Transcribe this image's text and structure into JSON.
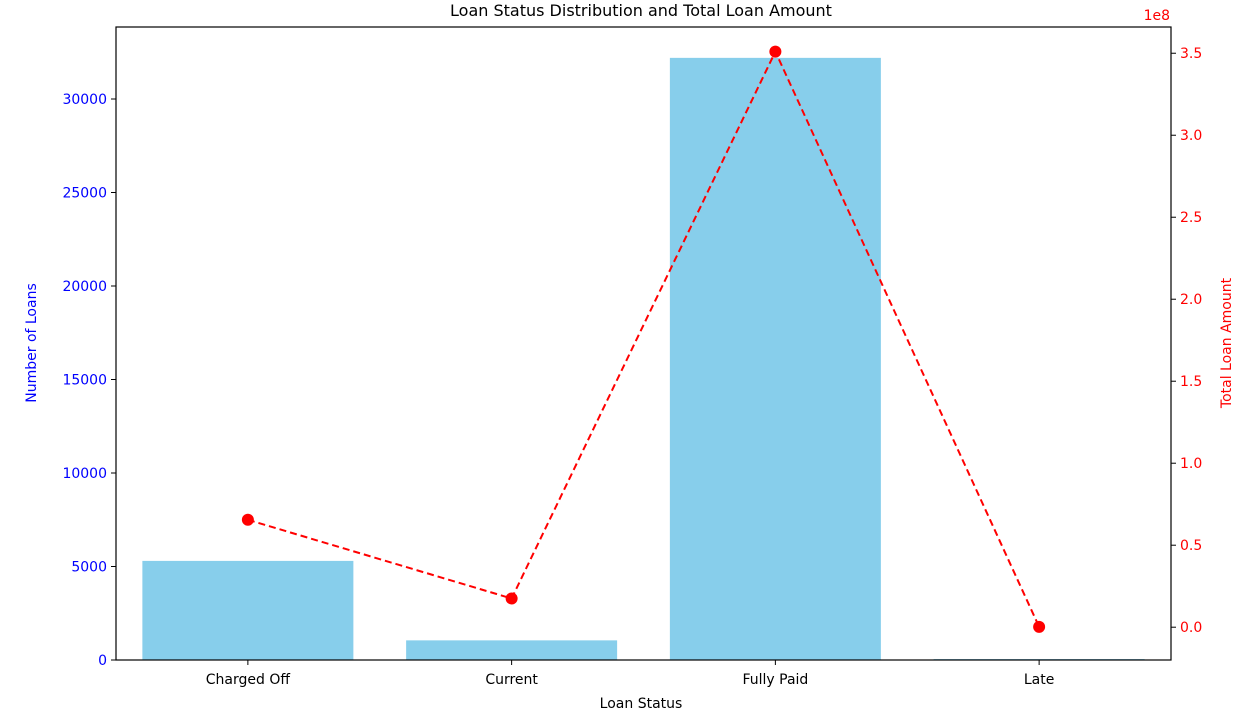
{
  "chart_data": {
    "type": "bar",
    "title": "Loan Status Distribution and Total Loan Amount",
    "xlabel": "Loan Status",
    "ylabel": "Number of Loans",
    "y2label": "Total Loan Amount",
    "y2_offset_text": "1e8",
    "categories": [
      "Charged Off",
      "Current",
      "Fully Paid",
      "Late"
    ],
    "ylim": [
      0,
      33850
    ],
    "y2lim": [
      -0.2,
      3.66
    ],
    "y_ticks": [
      "0",
      "5000",
      "10000",
      "15000",
      "20000",
      "25000",
      "30000"
    ],
    "y2_ticks": [
      "0.0",
      "0.5",
      "1.0",
      "1.5",
      "2.0",
      "2.5",
      "3.0",
      "3.5"
    ],
    "series": [
      {
        "type": "bar",
        "axis": "left",
        "values": [
          5300,
          1050,
          32200,
          50
        ]
      },
      {
        "type": "line",
        "axis": "right",
        "line_style": "dashed",
        "marker": "circle",
        "values": [
          0.655,
          0.175,
          3.51,
          0.002
        ]
      }
    ],
    "grid": false,
    "colors": {
      "bars": "#87CEEB",
      "line": "#FF0000",
      "left_axis_text": "#0000FF",
      "right_axis_text": "#FF0000",
      "axis_line": "#000000"
    }
  }
}
